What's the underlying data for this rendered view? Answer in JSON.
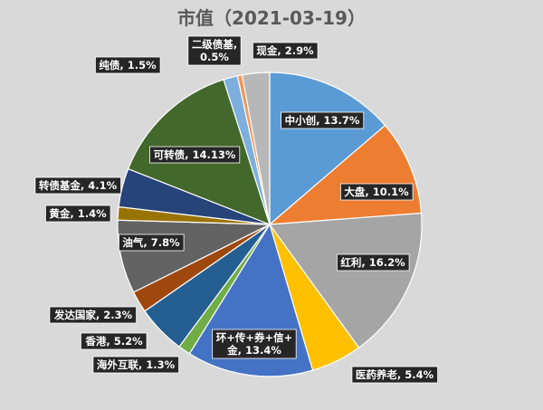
{
  "chart_data": {
    "type": "pie",
    "title": "市值（2021-03-19）",
    "slices": [
      {
        "name": "中小创",
        "label": "中小创, 13.7%",
        "value": 13.7,
        "color": "#5b9bd5"
      },
      {
        "name": "大盘",
        "label": "大盘, 10.1%",
        "value": 10.1,
        "color": "#ed7d31"
      },
      {
        "name": "红利",
        "label": "红利, 16.2%",
        "value": 16.2,
        "color": "#a5a5a5"
      },
      {
        "name": "医药养老",
        "label": "医药养老, 5.4%",
        "value": 5.4,
        "color": "#ffc000"
      },
      {
        "name": "环+传+券+信+金",
        "label": "环+传+券+信+\n金, 13.4%",
        "value": 13.4,
        "color": "#4472c4"
      },
      {
        "name": "海外互联",
        "label": "海外互联, 1.3%",
        "value": 1.3,
        "color": "#70ad47"
      },
      {
        "name": "香港",
        "label": "香港, 5.2%",
        "value": 5.2,
        "color": "#255e91"
      },
      {
        "name": "发达国家",
        "label": "发达国家, 2.3%",
        "value": 2.3,
        "color": "#9e480e"
      },
      {
        "name": "油气",
        "label": "油气, 7.8%",
        "value": 7.8,
        "color": "#636363"
      },
      {
        "name": "黄金",
        "label": "黄金, 1.4%",
        "value": 1.4,
        "color": "#997300"
      },
      {
        "name": "转债基金",
        "label": "转债基金, 4.1%",
        "value": 4.1,
        "color": "#264478"
      },
      {
        "name": "可转债",
        "label": "可转债, 14.13%",
        "value": 14.13,
        "color": "#43682b"
      },
      {
        "name": "纯债",
        "label": "纯债, 1.5%",
        "value": 1.5,
        "color": "#7cafdd"
      },
      {
        "name": "二级债基",
        "label": "二级债基,\n0.5%",
        "value": 0.5,
        "color": "#f1975a"
      },
      {
        "name": "现金",
        "label": "现金, 2.9%",
        "value": 2.9,
        "color": "#b7b7b7"
      }
    ],
    "legend": "none",
    "data_labels": "callout"
  }
}
